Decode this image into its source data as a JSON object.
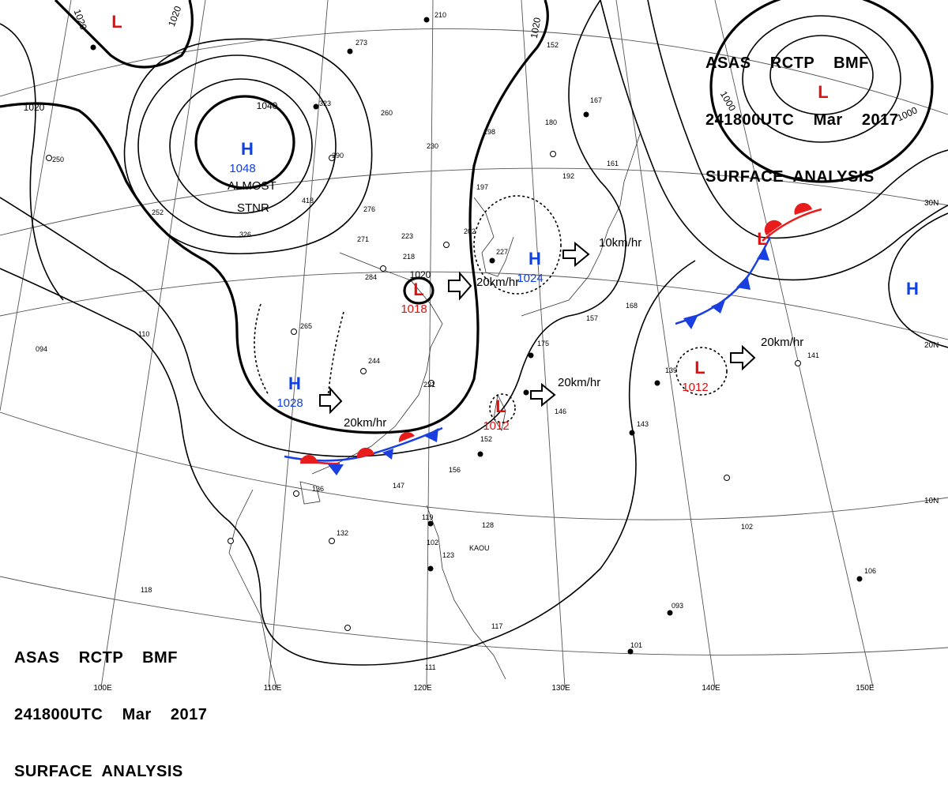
{
  "header": {
    "line1": "ASAS    RCTP    BMF",
    "line2": "241800UTC    Mar    2017",
    "line3": "SURFACE  ANALYSIS"
  },
  "pressure_centers": [
    {
      "type": "H",
      "value": "1048"
    },
    {
      "type": "H",
      "value": "1028"
    },
    {
      "type": "H",
      "value": "1024"
    },
    {
      "type": "H",
      "value": ""
    },
    {
      "type": "L",
      "value": "1018"
    },
    {
      "type": "L",
      "value": "1012"
    },
    {
      "type": "L",
      "value": "1012"
    },
    {
      "type": "L",
      "value": ""
    },
    {
      "type": "L",
      "value": ""
    },
    {
      "type": "L",
      "value": ""
    }
  ],
  "isobar_labels": [
    "1040",
    "1020",
    "1020",
    "1020",
    "1020",
    "1000",
    "1000",
    "1020"
  ],
  "motion_labels": [
    "20km/hr",
    "20km/hr",
    "20km/hr",
    "20km/hr",
    "10km/hr"
  ],
  "annotations": [
    "ALMOST",
    "STNR"
  ],
  "grid_labels": {
    "lat": [
      "30N",
      "20N",
      "10N"
    ],
    "lon": [
      "100E",
      "110E",
      "120E",
      "130E",
      "140E",
      "150E"
    ]
  },
  "station_labels": [
    "KAOU"
  ],
  "station_values": [
    "210",
    "273",
    "323",
    "260",
    "390",
    "230",
    "198",
    "180",
    "167",
    "152",
    "250",
    "252",
    "326",
    "418",
    "276",
    "271",
    "223",
    "202",
    "227",
    "218",
    "197",
    "284",
    "265",
    "244",
    "221",
    "161",
    "192",
    "157",
    "175",
    "168",
    "146",
    "143",
    "139",
    "141",
    "152",
    "156",
    "147",
    "136",
    "132",
    "128",
    "102",
    "119",
    "123",
    "117",
    "111",
    "101",
    "093",
    "106",
    "094",
    "110",
    "118",
    "102"
  ],
  "colors": {
    "high": "#1040e0",
    "low": "#e01010",
    "line": "#000000",
    "grid": "#444444",
    "front_cold": "#1a3fe0",
    "front_warm": "#e81c1c"
  }
}
